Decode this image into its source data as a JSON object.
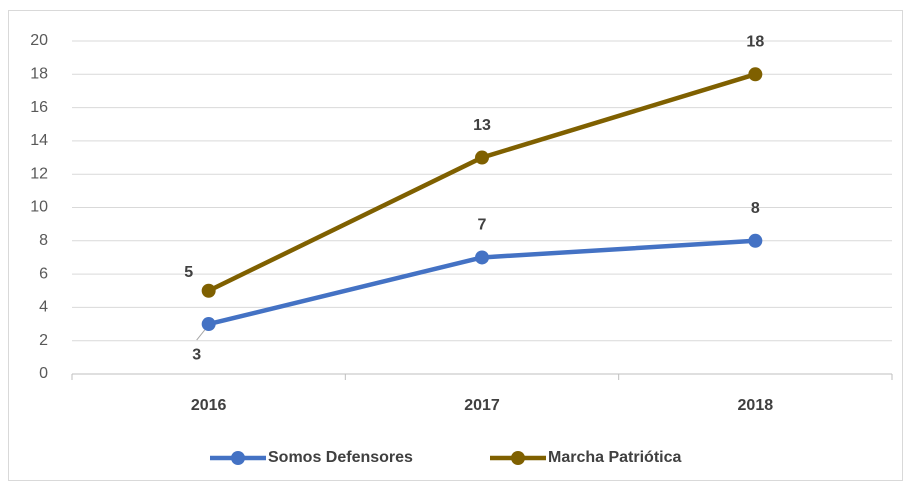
{
  "chart_data": {
    "type": "line",
    "categories": [
      "2016",
      "2017",
      "2018"
    ],
    "series": [
      {
        "name": "Somos Defensores",
        "color": "#4472c4",
        "values": [
          3,
          7,
          8
        ]
      },
      {
        "name": "Marcha Patriótica",
        "color": "#7f6000",
        "values": [
          5,
          13,
          18
        ]
      }
    ],
    "ylim": [
      0,
      20
    ],
    "yticks": [
      0,
      2,
      4,
      6,
      8,
      10,
      12,
      14,
      16,
      18,
      20
    ],
    "grid": true,
    "legend": "bottom"
  }
}
